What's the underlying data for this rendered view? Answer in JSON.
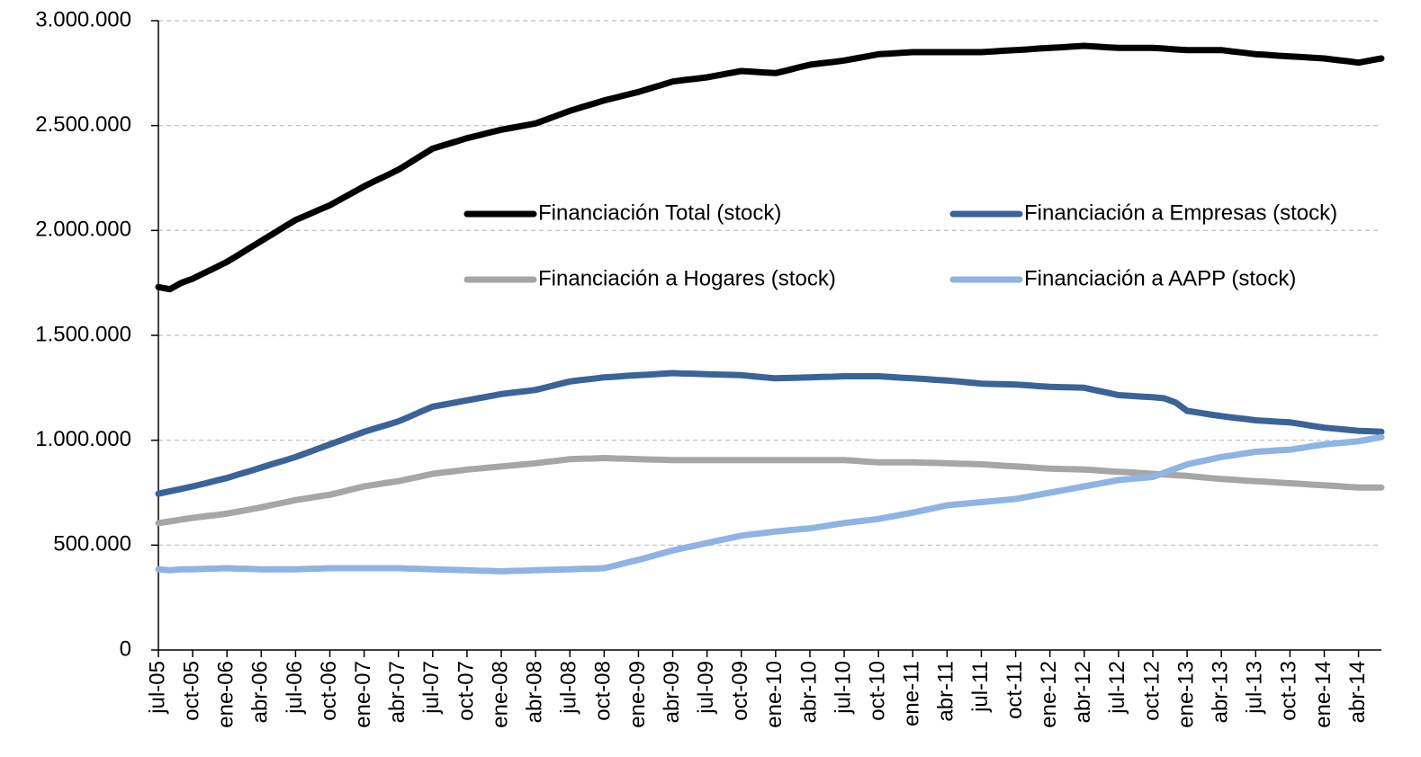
{
  "chart_data": {
    "type": "line",
    "categories": [
      "jul-05",
      null,
      null,
      "oct-05",
      null,
      null,
      "ene-06",
      null,
      null,
      "abr-06",
      null,
      null,
      "jul-06",
      null,
      null,
      "oct-06",
      null,
      null,
      "ene-07",
      null,
      null,
      "abr-07",
      null,
      null,
      "jul-07",
      null,
      null,
      "oct-07",
      null,
      null,
      "ene-08",
      null,
      null,
      "abr-08",
      null,
      null,
      "jul-08",
      null,
      null,
      "oct-08",
      null,
      null,
      "ene-09",
      null,
      null,
      "abr-09",
      null,
      null,
      "jul-09",
      null,
      null,
      "oct-09",
      null,
      null,
      "ene-10",
      null,
      null,
      "abr-10",
      null,
      null,
      "jul-10",
      null,
      null,
      "oct-10",
      null,
      null,
      "ene-11",
      null,
      null,
      "abr-11",
      null,
      null,
      "jul-11",
      null,
      null,
      "oct-11",
      null,
      null,
      "ene-12",
      null,
      null,
      "abr-12",
      null,
      null,
      "jul-12",
      null,
      null,
      "oct-12",
      null,
      null,
      "ene-13",
      null,
      null,
      "abr-13",
      null,
      null,
      "jul-13",
      null,
      null,
      "oct-13",
      null,
      null,
      "ene-14",
      null,
      null,
      "abr-14",
      null,
      null
    ],
    "series": [
      {
        "name": "Financiación Total (stock)",
        "color": "#000000",
        "values": [
          1730000,
          1720000,
          1750000,
          1770000,
          1797000,
          1823000,
          1850000,
          1883000,
          1917000,
          1950000,
          1983000,
          2017000,
          2050000,
          2073000,
          2097000,
          2120000,
          2150000,
          2180000,
          2210000,
          2237000,
          2263000,
          2290000,
          2323000,
          2357000,
          2390000,
          2407000,
          2423000,
          2440000,
          2453000,
          2467000,
          2480000,
          2490000,
          2500000,
          2510000,
          2530000,
          2550000,
          2570000,
          2587000,
          2603000,
          2620000,
          2633000,
          2647000,
          2660000,
          2677000,
          2693000,
          2710000,
          2717000,
          2723000,
          2730000,
          2740000,
          2750000,
          2760000,
          2757000,
          2753000,
          2750000,
          2763000,
          2777000,
          2790000,
          2797000,
          2803000,
          2810000,
          2820000,
          2830000,
          2840000,
          2843000,
          2847000,
          2850000,
          2850000,
          2850000,
          2850000,
          2850000,
          2850000,
          2850000,
          2853000,
          2857000,
          2860000,
          2863000,
          2867000,
          2870000,
          2873000,
          2877000,
          2880000,
          2877000,
          2873000,
          2870000,
          2870000,
          2870000,
          2870000,
          2867000,
          2863000,
          2860000,
          2860000,
          2860000,
          2860000,
          2853000,
          2847000,
          2840000,
          2837000,
          2833000,
          2830000,
          2827000,
          2823000,
          2820000,
          2813000,
          2807000,
          2800000,
          2810000,
          2820000
        ]
      },
      {
        "name": "Financiación a Empresas (stock)",
        "color": "#3a6398",
        "values": [
          745000,
          757000,
          768000,
          780000,
          793000,
          807000,
          820000,
          837000,
          853000,
          870000,
          887000,
          903000,
          920000,
          940000,
          960000,
          980000,
          1000000,
          1020000,
          1040000,
          1057000,
          1073000,
          1090000,
          1113000,
          1137000,
          1160000,
          1170000,
          1180000,
          1190000,
          1200000,
          1210000,
          1220000,
          1227000,
          1233000,
          1240000,
          1253000,
          1267000,
          1280000,
          1287000,
          1293000,
          1300000,
          1303000,
          1307000,
          1310000,
          1313000,
          1317000,
          1320000,
          1318000,
          1317000,
          1315000,
          1313000,
          1312000,
          1310000,
          1305000,
          1300000,
          1295000,
          1297000,
          1298000,
          1300000,
          1302000,
          1303000,
          1305000,
          1305000,
          1305000,
          1305000,
          1302000,
          1298000,
          1295000,
          1292000,
          1288000,
          1285000,
          1280000,
          1275000,
          1270000,
          1268000,
          1267000,
          1265000,
          1262000,
          1258000,
          1255000,
          1253000,
          1252000,
          1250000,
          1238000,
          1227000,
          1215000,
          1212000,
          1208000,
          1205000,
          1200000,
          1180000,
          1140000,
          1132000,
          1123000,
          1115000,
          1108000,
          1102000,
          1095000,
          1092000,
          1088000,
          1085000,
          1077000,
          1068000,
          1060000,
          1055000,
          1050000,
          1045000,
          1043000,
          1040000
        ]
      },
      {
        "name": "Financiación a Hogares (stock)",
        "color": "#a6a6a6",
        "values": [
          605000,
          613000,
          622000,
          630000,
          637000,
          643000,
          650000,
          660000,
          670000,
          680000,
          692000,
          703000,
          715000,
          723000,
          732000,
          740000,
          753000,
          767000,
          780000,
          788000,
          797000,
          805000,
          817000,
          828000,
          840000,
          847000,
          853000,
          860000,
          865000,
          870000,
          875000,
          880000,
          885000,
          890000,
          897000,
          903000,
          910000,
          912000,
          913000,
          915000,
          913000,
          912000,
          910000,
          908000,
          907000,
          905000,
          905000,
          905000,
          905000,
          905000,
          905000,
          905000,
          905000,
          905000,
          905000,
          905000,
          905000,
          905000,
          905000,
          905000,
          905000,
          902000,
          898000,
          895000,
          895000,
          895000,
          895000,
          893000,
          892000,
          890000,
          888000,
          887000,
          885000,
          882000,
          878000,
          875000,
          872000,
          868000,
          865000,
          863000,
          862000,
          860000,
          857000,
          853000,
          850000,
          847000,
          843000,
          840000,
          837000,
          833000,
          830000,
          825000,
          820000,
          815000,
          812000,
          808000,
          805000,
          802000,
          798000,
          795000,
          792000,
          788000,
          785000,
          782000,
          778000,
          775000,
          775000,
          775000
        ]
      },
      {
        "name": "Financiación a AAPP (stock)",
        "color": "#8db4e2",
        "values": [
          385000,
          380000,
          385000,
          385000,
          387000,
          388000,
          390000,
          388000,
          387000,
          385000,
          385000,
          385000,
          385000,
          387000,
          388000,
          390000,
          390000,
          390000,
          390000,
          390000,
          390000,
          390000,
          388000,
          387000,
          385000,
          383000,
          382000,
          380000,
          378000,
          377000,
          375000,
          377000,
          378000,
          380000,
          382000,
          383000,
          385000,
          387000,
          388000,
          390000,
          403000,
          417000,
          430000,
          445000,
          460000,
          475000,
          487000,
          498000,
          510000,
          522000,
          533000,
          545000,
          552000,
          558000,
          565000,
          570000,
          575000,
          580000,
          588000,
          597000,
          605000,
          612000,
          618000,
          625000,
          635000,
          645000,
          655000,
          667000,
          678000,
          690000,
          695000,
          700000,
          705000,
          710000,
          715000,
          720000,
          730000,
          740000,
          750000,
          760000,
          770000,
          780000,
          790000,
          800000,
          810000,
          815000,
          820000,
          825000,
          845000,
          865000,
          885000,
          897000,
          908000,
          920000,
          928000,
          937000,
          945000,
          948000,
          952000,
          955000,
          963000,
          972000,
          980000,
          985000,
          990000,
          995000,
          1005000,
          1015000
        ]
      }
    ],
    "ylim": [
      0,
      3000000
    ],
    "yticks": [
      0,
      {
        "value": 500000,
        "label": "500.000"
      },
      {
        "value": 1000000,
        "label": "1.000.000"
      },
      {
        "value": 1500000,
        "label": "1.500.000"
      },
      {
        "value": 2000000,
        "label": "2.000.000"
      },
      {
        "value": 2500000,
        "label": "2.500.000"
      },
      {
        "value": 3000000,
        "label": "3.000.000"
      }
    ],
    "grid": true
  }
}
